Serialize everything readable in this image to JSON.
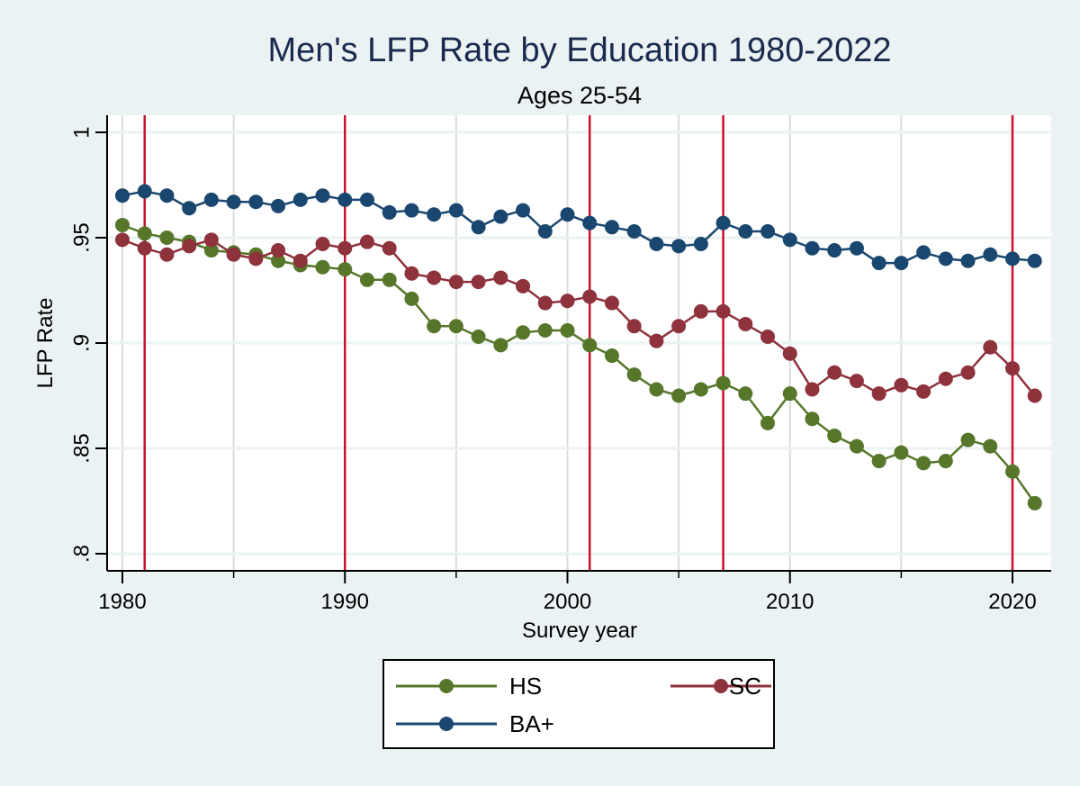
{
  "chart_data": {
    "type": "line",
    "title": "Men's LFP Rate by Education 1980-2022",
    "subtitle": "Ages 25-54",
    "xlabel": "Survey year",
    "ylabel": "LFP Rate",
    "xlim": [
      1979.3,
      2021.7
    ],
    "ylim": [
      0.791,
      1.008
    ],
    "x_ticks": [
      1980,
      1990,
      2000,
      2010,
      2020
    ],
    "x_tick_labels": [
      "1980",
      "1990",
      "2000",
      "2010",
      "2020"
    ],
    "x_minor_ticks": [
      1985,
      1995,
      2005,
      2015
    ],
    "x_gridlines": [
      1980,
      1985,
      1990,
      1995,
      2000,
      2005,
      2010,
      2015,
      2020
    ],
    "y_ticks": [
      0.8,
      0.85,
      0.9,
      0.95,
      1
    ],
    "y_tick_labels": [
      ".8",
      ".85",
      ".9",
      ".95",
      "1"
    ],
    "grid": true,
    "reference_lines": {
      "color": "#c8102e",
      "x": [
        1981,
        1990,
        2001,
        2007,
        2020
      ]
    },
    "x": [
      1980,
      1981,
      1982,
      1983,
      1984,
      1985,
      1986,
      1987,
      1988,
      1989,
      1990,
      1991,
      1992,
      1993,
      1994,
      1995,
      1996,
      1997,
      1998,
      1999,
      2000,
      2001,
      2002,
      2003,
      2004,
      2005,
      2006,
      2007,
      2008,
      2009,
      2010,
      2011,
      2012,
      2013,
      2014,
      2015,
      2016,
      2017,
      2018,
      2019,
      2020,
      2021
    ],
    "series": [
      {
        "name": "HS",
        "color": "#56772a",
        "values": [
          0.956,
          0.952,
          0.95,
          0.948,
          0.944,
          0.943,
          0.942,
          0.939,
          0.937,
          0.936,
          0.935,
          0.93,
          0.93,
          0.921,
          0.908,
          0.908,
          0.903,
          0.899,
          0.905,
          0.906,
          0.906,
          0.899,
          0.894,
          0.885,
          0.878,
          0.875,
          0.878,
          0.881,
          0.876,
          0.862,
          0.876,
          0.864,
          0.856,
          0.851,
          0.844,
          0.848,
          0.843,
          0.844,
          0.854,
          0.851,
          0.839,
          0.824
        ]
      },
      {
        "name": "SC",
        "color": "#8e323c",
        "values": [
          0.949,
          0.945,
          0.942,
          0.946,
          0.949,
          0.942,
          0.94,
          0.944,
          0.939,
          0.947,
          0.945,
          0.948,
          0.945,
          0.933,
          0.931,
          0.929,
          0.929,
          0.931,
          0.927,
          0.919,
          0.92,
          0.922,
          0.919,
          0.908,
          0.901,
          0.908,
          0.915,
          0.915,
          0.909,
          0.903,
          0.895,
          0.878,
          0.886,
          0.882,
          0.876,
          0.88,
          0.877,
          0.883,
          0.886,
          0.898,
          0.888,
          0.875
        ]
      },
      {
        "name": "BA+",
        "color": "#1a476f",
        "values": [
          0.97,
          0.972,
          0.97,
          0.964,
          0.968,
          0.967,
          0.967,
          0.965,
          0.968,
          0.97,
          0.968,
          0.968,
          0.962,
          0.963,
          0.961,
          0.963,
          0.955,
          0.96,
          0.963,
          0.953,
          0.961,
          0.957,
          0.955,
          0.953,
          0.947,
          0.946,
          0.947,
          0.957,
          0.953,
          0.953,
          0.949,
          0.945,
          0.944,
          0.945,
          0.938,
          0.938,
          0.943,
          0.94,
          0.939,
          0.942,
          0.94,
          0.939
        ]
      }
    ],
    "legend": {
      "placement": "bottom",
      "entries": [
        "HS",
        "SC",
        "BA+"
      ]
    }
  }
}
